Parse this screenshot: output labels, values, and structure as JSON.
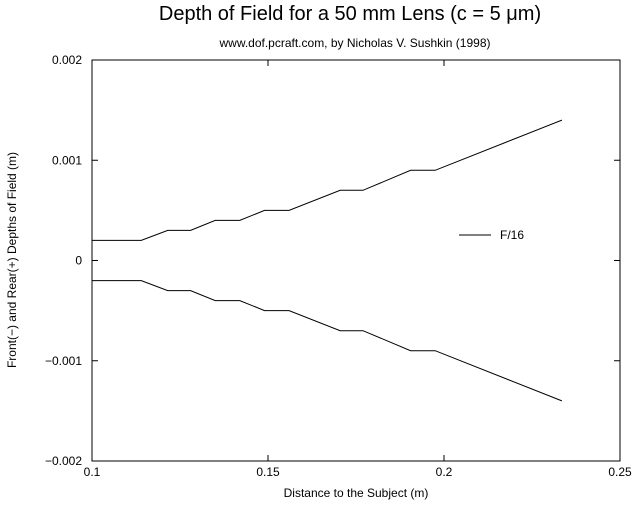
{
  "chart_data": {
    "type": "line",
    "title": "Depth of Field for a 50 mm Lens (c = 5 μm)",
    "subtitle": "www.dof.pcraft.com, by Nicholas V. Sushkin (1998)",
    "xlabel": "Distance to the Subject (m)",
    "ylabel": "Front(−) and Rear(+) Depths of Field (m)",
    "xlim": [
      0.1,
      0.25
    ],
    "ylim": [
      -0.002,
      0.002
    ],
    "xticks": [
      {
        "value": 0.1,
        "label": "0.1"
      },
      {
        "value": 0.15,
        "label": "0.15"
      },
      {
        "value": 0.2,
        "label": "0.2"
      },
      {
        "value": 0.25,
        "label": "0.25"
      }
    ],
    "yticks": [
      {
        "value": 0.002,
        "label": "0.002"
      },
      {
        "value": 0.001,
        "label": "0.001"
      },
      {
        "value": 0,
        "label": "0"
      },
      {
        "value": -0.001,
        "label": "−0.001"
      },
      {
        "value": -0.002,
        "label": "−0.002"
      }
    ],
    "legend_position": "center-right",
    "grid": false,
    "series": [
      {
        "name": "F/16",
        "color": "#000000",
        "segments": [
          {
            "part": "rear",
            "x": [
              0.1,
              0.114,
              0.1215,
              0.128,
              0.135,
              0.142,
              0.149,
              0.156,
              0.1705,
              0.177,
              0.1905,
              0.1975,
              0.2335
            ],
            "y": [
              0.0002,
              0.0002,
              0.0003,
              0.0003,
              0.0004,
              0.0004,
              0.0005,
              0.0005,
              0.0007,
              0.0007,
              0.0009,
              0.0009,
              0.0014
            ]
          },
          {
            "part": "front",
            "x": [
              0.1,
              0.114,
              0.1215,
              0.128,
              0.135,
              0.142,
              0.149,
              0.156,
              0.1705,
              0.177,
              0.1905,
              0.1975,
              0.2335
            ],
            "y": [
              -0.0002,
              -0.0002,
              -0.0003,
              -0.0003,
              -0.0004,
              -0.0004,
              -0.0005,
              -0.0005,
              -0.0007,
              -0.0007,
              -0.0009,
              -0.0009,
              -0.0014
            ]
          }
        ]
      }
    ]
  }
}
